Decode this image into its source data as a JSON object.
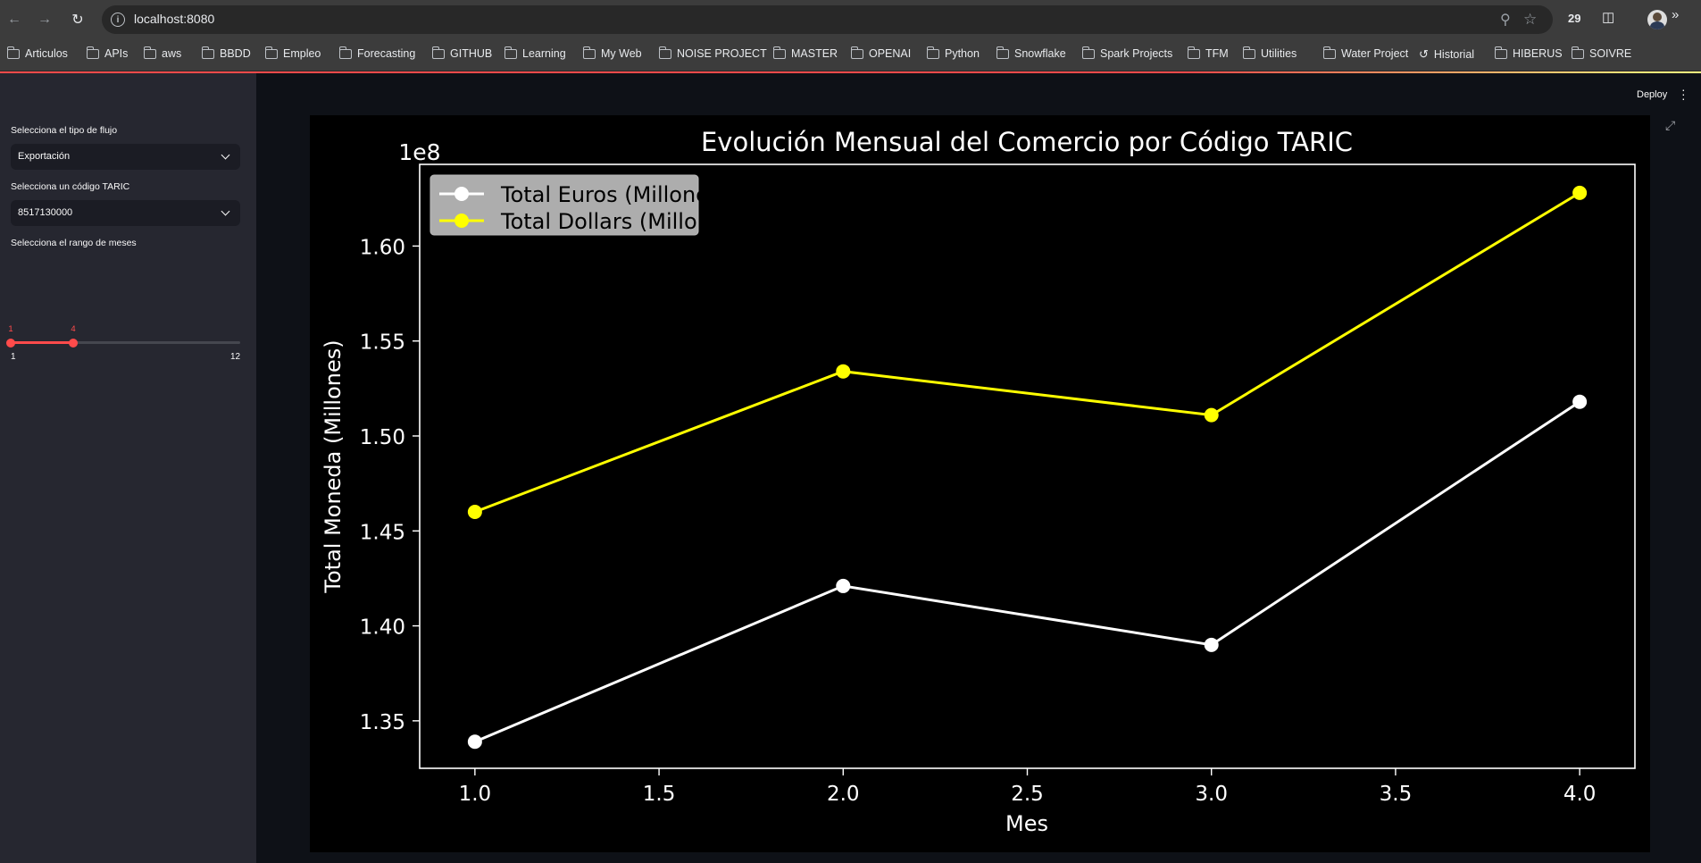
{
  "browser": {
    "url": "localhost:8080",
    "tab_count": "29",
    "bookmarks": [
      "Articulos",
      "APIs",
      "aws",
      "BBDD",
      "Empleo",
      "Forecasting",
      "GITHUB",
      "Learning",
      "My Web",
      "NOISE PROJECT",
      "MASTER",
      "OPENAI",
      "Python",
      "Snowflake",
      "Spark Projects",
      "TFM",
      "Utilities",
      "Water Project",
      "Historial",
      "HIBERUS",
      "SOIVRE"
    ],
    "history_bookmark_index": 18
  },
  "app": {
    "deploy_label": "Deploy"
  },
  "sidebar": {
    "flow_label": "Selecciona el tipo de flujo",
    "flow_value": "Exportación",
    "taric_label": "Selecciona un código TARIC",
    "taric_value": "8517130000",
    "range_label": "Selecciona el rango de meses",
    "range_low": "1",
    "range_high": "4",
    "range_min": "1",
    "range_max": "12",
    "range_low_value": 1,
    "range_high_value": 4,
    "range_min_value": 1,
    "range_max_value": 12
  },
  "chart_data": {
    "type": "line",
    "title": "Evolución Mensual del Comercio por Código TARIC",
    "xlabel": "Mes",
    "ylabel": "Total Moneda (Millones)",
    "y_offset_label": "1e8",
    "x": [
      1.0,
      2.0,
      3.0,
      4.0
    ],
    "xlim": [
      0.85,
      4.15
    ],
    "ylim": [
      1.325,
      1.643
    ],
    "x_ticks": [
      "1.0",
      "1.5",
      "2.0",
      "2.5",
      "3.0",
      "3.5",
      "4.0"
    ],
    "x_tick_values": [
      1.0,
      1.5,
      2.0,
      2.5,
      3.0,
      3.5,
      4.0
    ],
    "y_ticks": [
      "1.35",
      "1.40",
      "1.45",
      "1.50",
      "1.55",
      "1.60"
    ],
    "y_tick_values": [
      1.35,
      1.4,
      1.45,
      1.5,
      1.55,
      1.6
    ],
    "grid": false,
    "legend_position": "upper left",
    "series": [
      {
        "name": "Total Euros (Millones)",
        "color": "#ffffff",
        "values": [
          1.339,
          1.421,
          1.39,
          1.518
        ]
      },
      {
        "name": "Total Dollars (Millones)",
        "color": "#ffff00",
        "values": [
          1.46,
          1.534,
          1.511,
          1.628
        ]
      }
    ]
  }
}
